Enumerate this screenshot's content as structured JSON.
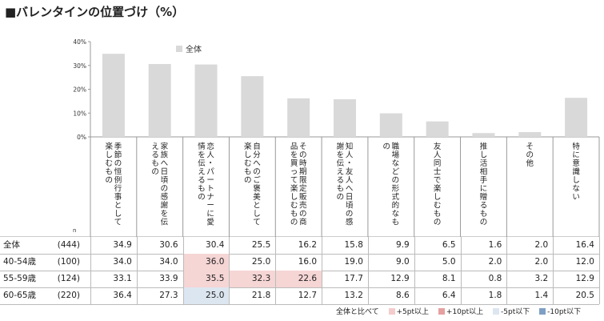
{
  "title": "■バレンタインの位置づけ（%）",
  "n_label": "n",
  "chart_data": {
    "type": "bar",
    "title": "■バレンタインの位置づけ（%）",
    "categories": [
      "季節の恒例行事として楽しむもの",
      "家族へ日頃の感謝を伝えるもの",
      "恋人・パートナーに愛情を伝えるもの",
      "自分へのご褒美として楽しむもの",
      "その時期限定販売の商品を買って楽しむもの",
      "知人・友人へ日頃の感謝を伝えるもの",
      "職場などの形式的なもの",
      "友人同士で楽しむもの",
      "推し活相手に贈るもの",
      "その他",
      "特に意識しない"
    ],
    "series": [
      {
        "name": "全体",
        "values": [
          34.9,
          30.6,
          30.4,
          25.5,
          16.2,
          15.8,
          9.9,
          6.5,
          1.6,
          2.0,
          16.4
        ]
      }
    ],
    "ylim": [
      0,
      40
    ],
    "yticks": [
      "0%",
      "10%",
      "20%",
      "30%",
      "40%"
    ],
    "legend": "top-left",
    "grid": false,
    "bar_color": "#d9d9d9"
  },
  "table": {
    "rows": [
      {
        "label": "全体",
        "n": "(444)",
        "values": [
          "34.9",
          "30.6",
          "30.4",
          "25.5",
          "16.2",
          "15.8",
          "9.9",
          "6.5",
          "1.6",
          "2.0",
          "16.4"
        ],
        "hl": [
          "",
          "",
          "",
          "",
          "",
          "",
          "",
          "",
          "",
          "",
          ""
        ]
      },
      {
        "label": "40-54歳",
        "n": "(100)",
        "values": [
          "34.0",
          "34.0",
          "36.0",
          "25.0",
          "16.0",
          "19.0",
          "9.0",
          "5.0",
          "2.0",
          "2.0",
          "12.0"
        ],
        "hl": [
          "",
          "",
          "plus5",
          "",
          "",
          "",
          "",
          "",
          "",
          "",
          ""
        ]
      },
      {
        "label": "55-59歳",
        "n": "(124)",
        "values": [
          "33.1",
          "33.9",
          "35.5",
          "32.3",
          "22.6",
          "17.7",
          "12.9",
          "8.1",
          "0.8",
          "3.2",
          "12.9"
        ],
        "hl": [
          "",
          "",
          "plus5",
          "plus5",
          "plus5",
          "",
          "",
          "",
          "",
          "",
          ""
        ]
      },
      {
        "label": "60-65歳",
        "n": "(220)",
        "values": [
          "36.4",
          "27.3",
          "25.0",
          "21.8",
          "12.7",
          "13.2",
          "8.6",
          "6.4",
          "1.8",
          "1.4",
          "20.5"
        ],
        "hl": [
          "",
          "",
          "minus5",
          "",
          "",
          "",
          "",
          "",
          "",
          "",
          ""
        ]
      }
    ]
  },
  "legend": {
    "compare": "全体と比べて",
    "items": [
      {
        "label": "+5pt以上",
        "color": "#f4cccc"
      },
      {
        "label": "+10pt以上",
        "color": "#e6a0a0"
      },
      {
        "label": "-5pt以下",
        "color": "#dce6f0"
      },
      {
        "label": "-10pt以下",
        "color": "#7f9fc4"
      }
    ]
  },
  "highlight_colors": {
    "plus5": "#f6d5d5",
    "minus5": "#dce6f0"
  }
}
